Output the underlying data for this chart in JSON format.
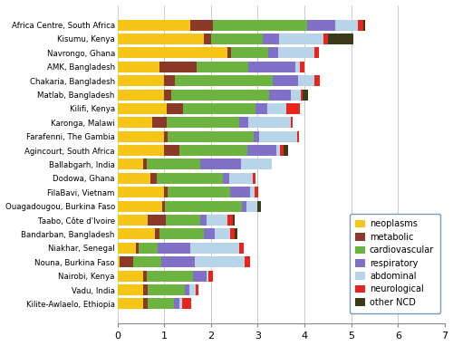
{
  "sites": [
    "Africa Centre, South Africa",
    "Kisumu, Kenya",
    "Navrongo, Ghana",
    "AMK, Bangladesh",
    "Chakaria, Bangladesh",
    "Matlab, Bangladesh",
    "Kilifi, Kenya",
    "Karonga, Malawi",
    "Farafenni, The Gambia",
    "Agincourt, South Africa",
    "Ballabgarh, India",
    "Dodowa, Ghana",
    "FilaBavi, Vietnam",
    "Ouagadougou, Burkina Faso",
    "Taabo, Côte d'Ivoire",
    "Bandarban, Bangladesh",
    "Niakhar, Senegal",
    "Nouna, Burkina Faso",
    "Nairobi, Kenya",
    "Vadu, India",
    "Kilite-Awlaelo, Ethiopia"
  ],
  "data": {
    "neoplasms": [
      1.55,
      1.85,
      2.35,
      0.9,
      1.0,
      1.0,
      1.05,
      0.75,
      1.0,
      1.0,
      0.55,
      0.7,
      1.0,
      0.95,
      0.65,
      0.8,
      0.4,
      0.05,
      0.55,
      0.55,
      0.55
    ],
    "metabolic": [
      0.5,
      0.15,
      0.08,
      0.8,
      0.22,
      0.15,
      0.35,
      0.3,
      0.07,
      0.32,
      0.07,
      0.15,
      0.07,
      0.07,
      0.38,
      0.1,
      0.05,
      0.28,
      0.07,
      0.1,
      0.1
    ],
    "cardiovascular": [
      2.0,
      1.1,
      0.8,
      1.1,
      2.1,
      2.1,
      1.55,
      1.55,
      1.85,
      1.45,
      1.15,
      1.4,
      1.35,
      1.65,
      0.75,
      0.95,
      0.42,
      0.6,
      1.0,
      0.8,
      0.55
    ],
    "respiratory": [
      0.6,
      0.35,
      0.2,
      1.0,
      0.55,
      0.45,
      0.25,
      0.2,
      0.12,
      0.62,
      0.88,
      0.15,
      0.42,
      0.08,
      0.13,
      0.23,
      0.68,
      0.72,
      0.28,
      0.08,
      0.13
    ],
    "abdominal": [
      0.5,
      0.95,
      0.78,
      0.1,
      0.35,
      0.22,
      0.42,
      0.9,
      0.8,
      0.08,
      0.65,
      0.5,
      0.1,
      0.25,
      0.45,
      0.33,
      1.05,
      1.08,
      0.05,
      0.15,
      0.05
    ],
    "neurological": [
      0.1,
      0.1,
      0.1,
      0.1,
      0.1,
      0.05,
      0.28,
      0.05,
      0.05,
      0.08,
      0.0,
      0.05,
      0.08,
      0.0,
      0.1,
      0.1,
      0.1,
      0.1,
      0.1,
      0.05,
      0.2
    ],
    "other_ncd": [
      0.05,
      0.55,
      0.0,
      0.0,
      0.0,
      0.1,
      0.0,
      0.0,
      0.0,
      0.1,
      0.0,
      0.0,
      0.0,
      0.07,
      0.05,
      0.05,
      0.0,
      0.0,
      0.0,
      0.0,
      0.0
    ]
  },
  "colors": {
    "neoplasms": "#F5C518",
    "metabolic": "#8B3A2A",
    "cardiovascular": "#6DB33F",
    "respiratory": "#8070C8",
    "abdominal": "#B8D4E8",
    "neurological": "#E8241C",
    "other_ncd": "#3B3B1A"
  },
  "legend_labels": [
    "neoplasms",
    "metabolic",
    "cardiovascular",
    "respiratory",
    "abdominal",
    "neurological",
    "other NCD"
  ],
  "xlim": [
    0,
    7
  ],
  "xticks": [
    0,
    1,
    2,
    3,
    4,
    5,
    6,
    7
  ]
}
